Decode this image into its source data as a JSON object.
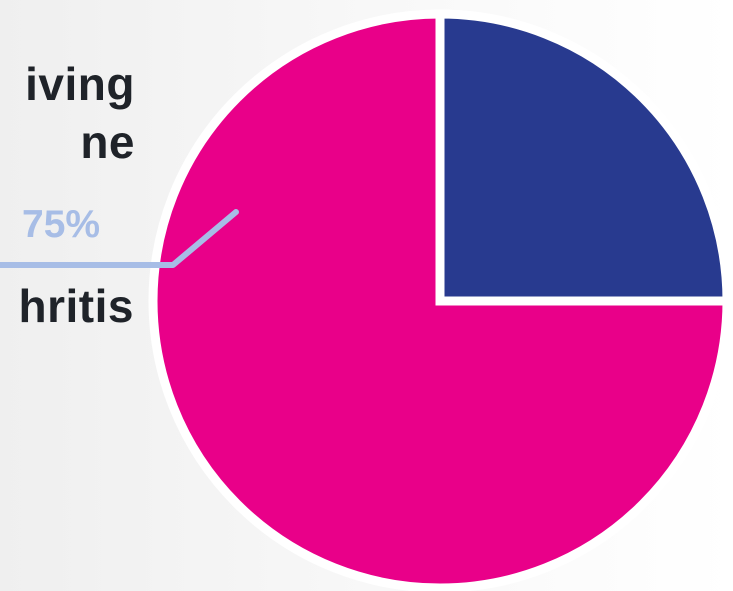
{
  "chart_data": {
    "type": "pie",
    "slices": [
      {
        "label": "",
        "value": 25,
        "color": "#283a8f"
      },
      {
        "label": "",
        "value": 75,
        "color": "#e90089"
      }
    ],
    "annotation": {
      "text": "75%",
      "color": "#a7bde6"
    },
    "side_text": [
      "iving",
      "ne",
      "hritis"
    ],
    "legend": "none",
    "grid": false
  }
}
